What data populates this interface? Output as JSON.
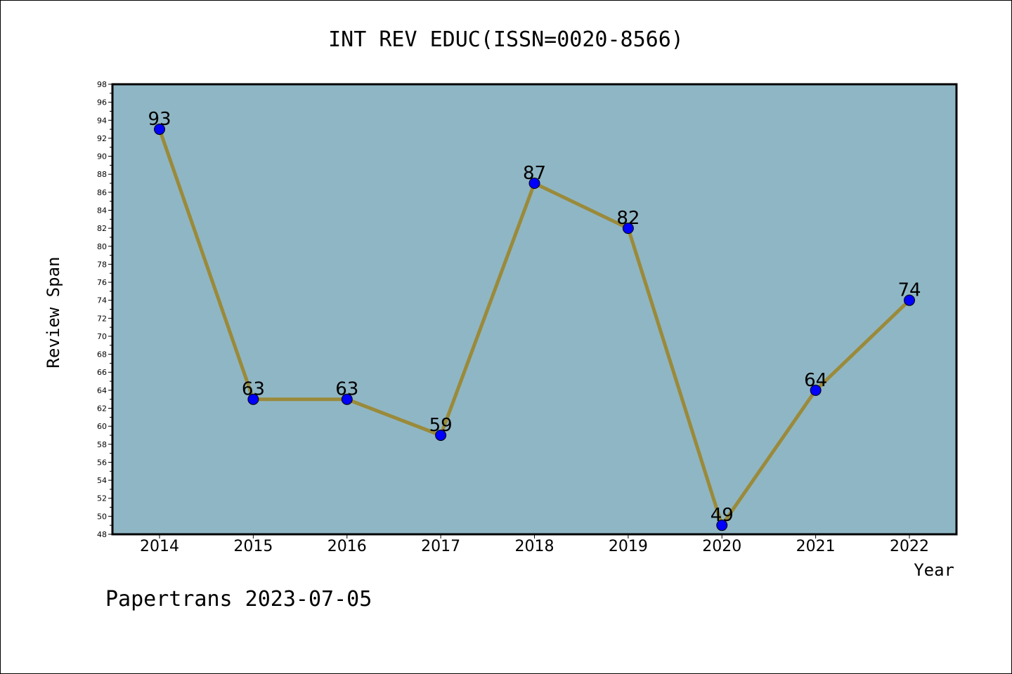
{
  "chart_data": {
    "type": "line",
    "title": "INT REV EDUC(ISSN=0020-8566)",
    "xlabel": "Year",
    "ylabel": "Review Span",
    "x": [
      "2014",
      "2015",
      "2016",
      "2017",
      "2018",
      "2019",
      "2020",
      "2021",
      "2022"
    ],
    "values": [
      93,
      63,
      63,
      59,
      87,
      82,
      49,
      64,
      74
    ],
    "data_labels": [
      "93",
      "63",
      "63",
      "59",
      "87",
      "82",
      "49",
      "64",
      "74"
    ],
    "ylim": [
      48,
      98
    ],
    "yticks": [
      "48",
      "50",
      "52",
      "54",
      "56",
      "58",
      "60",
      "62",
      "64",
      "66",
      "68",
      "70",
      "72",
      "74",
      "76",
      "78",
      "80",
      "82",
      "84",
      "86",
      "88",
      "90",
      "92",
      "94",
      "96",
      "98"
    ],
    "grid": false,
    "legend": "none",
    "footer": "Papertrans 2023-07-05",
    "colors": {
      "plot_background": "#8fb6c4",
      "line": "#9a8a3a",
      "marker": "#0000ff",
      "axis": "#000000"
    }
  }
}
